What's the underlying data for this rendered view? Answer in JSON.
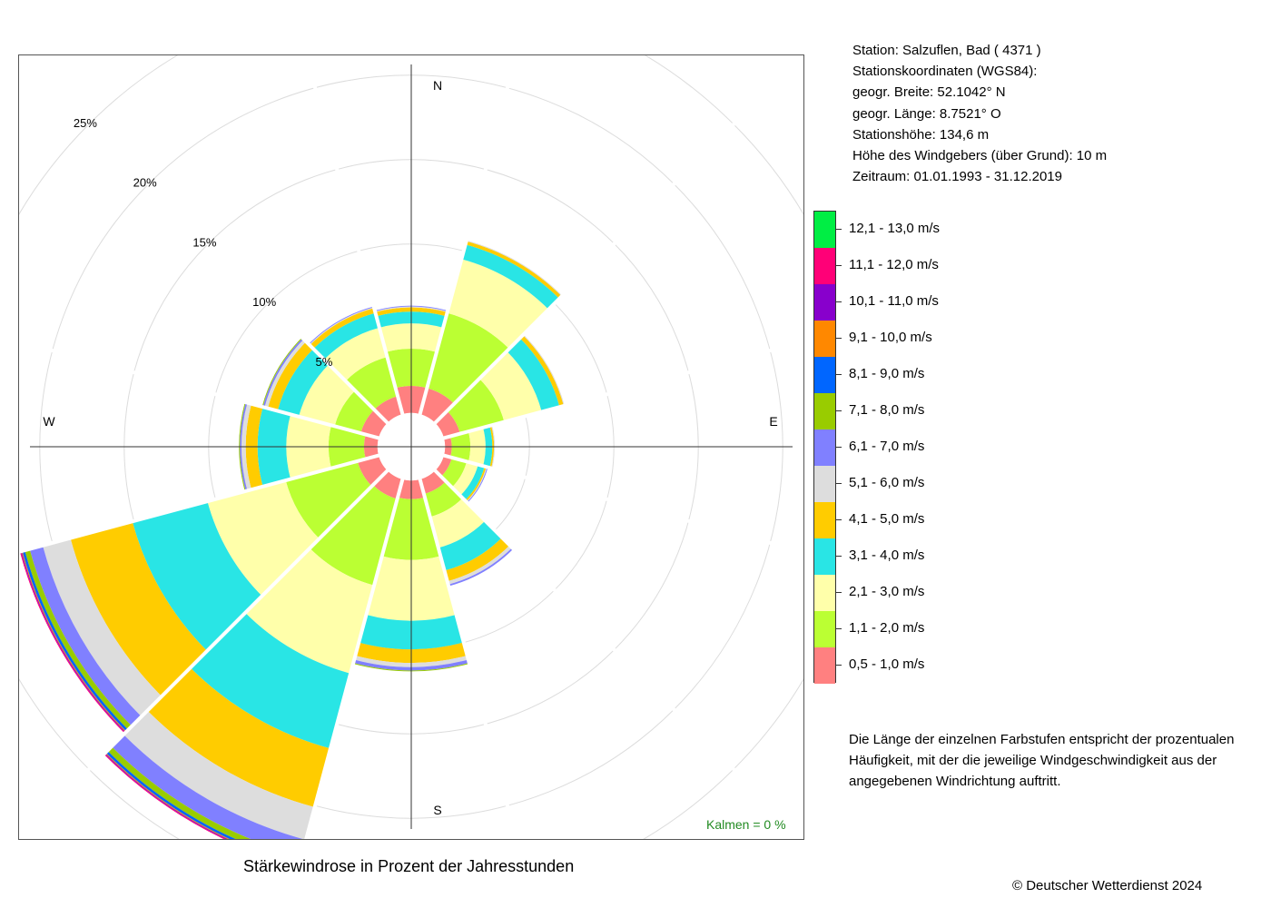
{
  "station": {
    "lines": [
      "Station:  Salzuflen, Bad  ( 4371 )",
      "Stationskoordinaten (WGS84):",
      "geogr. Breite: 52.1042° N",
      "geogr. Länge:   8.7521° O",
      "Stationshöhe: 134,6 m",
      "Höhe des Windgebers (über Grund): 10 m",
      "Zeitraum: 01.01.1993 - 31.12.2019"
    ]
  },
  "legend": {
    "items": [
      {
        "label": "12,1 - 13,0 m/s",
        "color": "#00ee44"
      },
      {
        "label": "11,1 - 12,0 m/s",
        "color": "#ff0077"
      },
      {
        "label": "10,1 - 11,0 m/s",
        "color": "#8800cc"
      },
      {
        "label": "9,1 - 10,0 m/s",
        "color": "#ff8800"
      },
      {
        "label": "8,1 - 9,0 m/s",
        "color": "#0066ff"
      },
      {
        "label": "7,1 - 8,0 m/s",
        "color": "#99cc00"
      },
      {
        "label": "6,1 - 7,0 m/s",
        "color": "#8080ff"
      },
      {
        "label": "5,1 - 6,0 m/s",
        "color": "#dddddd"
      },
      {
        "label": "4,1 - 5,0 m/s",
        "color": "#ffcc00"
      },
      {
        "label": "3,1 - 4,0 m/s",
        "color": "#29e5e5"
      },
      {
        "label": "2,1 - 3,0 m/s",
        "color": "#ffffaa"
      },
      {
        "label": "1,1 - 2,0 m/s",
        "color": "#bbff33"
      },
      {
        "label": "0,5 - 1,0 m/s",
        "color": "#ff8080"
      }
    ]
  },
  "note": {
    "lines": [
      "Die Länge der einzelnen Farbstufen entspricht der prozentualen",
      "Häufigkeit, mit der die jeweilige Windgeschwindigkeit aus der",
      "angegebenen Windrichtung auftritt."
    ]
  },
  "caption": "Stärkewindrose in Prozent der Jahresstunden",
  "copyright": "© Deutscher Wetterdienst  2024",
  "calm": "Kalmen  =  0 %",
  "chart_data": {
    "type": "wind-rose",
    "title": "Stärkewindrose in Prozent der Jahresstunden",
    "compass": [
      "N",
      "E",
      "S",
      "W"
    ],
    "radial_ticks": [
      5,
      10,
      15,
      20,
      25
    ],
    "radial_tick_labels": [
      "5%",
      "10%",
      "15%",
      "20%",
      "25%"
    ],
    "rmax": 25,
    "inner_offset": 2,
    "sector_width_deg": 30,
    "speed_classes": [
      "0,5 - 1,0 m/s",
      "1,1 - 2,0 m/s",
      "2,1 - 3,0 m/s",
      "3,1 - 4,0 m/s",
      "4,1 - 5,0 m/s",
      "5,1 - 6,0 m/s",
      "6,1 - 7,0 m/s",
      "7,1 - 8,0 m/s",
      "8,1 - 9,0 m/s",
      "9,1 - 10,0 m/s",
      "10,1 - 11,0 m/s",
      "11,1 - 12,0 m/s",
      "12,1 - 13,0 m/s"
    ],
    "colors": [
      "#ff8080",
      "#bbff33",
      "#ffffaa",
      "#29e5e5",
      "#ffcc00",
      "#dddddd",
      "#8080ff",
      "#99cc00",
      "#0066ff",
      "#ff8800",
      "#8800cc",
      "#ff0077",
      "#00ee44"
    ],
    "sectors": [
      {
        "direction_deg": 0,
        "values": [
          1.6,
          2.2,
          1.5,
          0.7,
          0.25,
          0.05,
          0.05,
          0,
          0,
          0,
          0,
          0,
          0
        ]
      },
      {
        "direction_deg": 30,
        "values": [
          1.6,
          4.6,
          3.3,
          0.9,
          0.2,
          0.05,
          0,
          0,
          0,
          0,
          0,
          0,
          0
        ]
      },
      {
        "direction_deg": 60,
        "values": [
          1.0,
          2.7,
          2.3,
          1.1,
          0.25,
          0.05,
          0,
          0,
          0,
          0,
          0,
          0,
          0
        ]
      },
      {
        "direction_deg": 90,
        "values": [
          0.4,
          1.1,
          0.9,
          0.4,
          0.1,
          0.05,
          0,
          0,
          0,
          0,
          0,
          0,
          0
        ]
      },
      {
        "direction_deg": 120,
        "values": [
          0.5,
          0.9,
          0.7,
          0.4,
          0.1,
          0.05,
          0.05,
          0,
          0,
          0,
          0,
          0,
          0
        ]
      },
      {
        "direction_deg": 150,
        "values": [
          0.9,
          1.4,
          1.9,
          1.4,
          0.65,
          0.2,
          0.1,
          0,
          0,
          0,
          0,
          0,
          0
        ]
      },
      {
        "direction_deg": 180,
        "values": [
          1.1,
          3.6,
          3.6,
          1.7,
          0.8,
          0.25,
          0.2,
          0.05,
          0,
          0,
          0,
          0,
          0
        ]
      },
      {
        "direction_deg": 210,
        "values": [
          1.2,
          5.3,
          5.4,
          4.6,
          3.6,
          2.0,
          1.0,
          0.35,
          0.15,
          0.05,
          0.05,
          0.05,
          0
        ]
      },
      {
        "direction_deg": 240,
        "values": [
          1.3,
          4.4,
          4.8,
          4.6,
          3.8,
          1.7,
          0.8,
          0.3,
          0.15,
          0.05,
          0.05,
          0.05,
          0
        ]
      },
      {
        "direction_deg": 270,
        "values": [
          0.8,
          2.1,
          2.5,
          1.7,
          0.7,
          0.25,
          0.1,
          0.05,
          0,
          0,
          0,
          0,
          0
        ]
      },
      {
        "direction_deg": 300,
        "values": [
          1.1,
          1.6,
          2.2,
          1.3,
          0.6,
          0.2,
          0.1,
          0.05,
          0,
          0,
          0,
          0,
          0
        ]
      },
      {
        "direction_deg": 330,
        "values": [
          1.1,
          2.4,
          1.8,
          0.9,
          0.3,
          0.05,
          0.05,
          0,
          0,
          0,
          0,
          0,
          0
        ]
      }
    ]
  }
}
